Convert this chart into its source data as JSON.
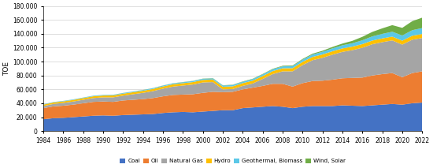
{
  "years": [
    1984,
    1985,
    1986,
    1987,
    1988,
    1989,
    1990,
    1991,
    1992,
    1993,
    1994,
    1995,
    1996,
    1997,
    1998,
    1999,
    2000,
    2001,
    2002,
    2003,
    2004,
    2005,
    2006,
    2007,
    2008,
    2009,
    2010,
    2011,
    2012,
    2013,
    2014,
    2015,
    2016,
    2017,
    2018,
    2019,
    2020,
    2021,
    2022
  ],
  "coal": [
    17000,
    18500,
    19000,
    20000,
    21000,
    22000,
    22500,
    22000,
    23000,
    23500,
    24000,
    24500,
    26000,
    27000,
    27500,
    27000,
    28000,
    29000,
    30000,
    30000,
    33000,
    34000,
    35000,
    36000,
    35000,
    33000,
    35000,
    36000,
    36000,
    36000,
    37000,
    36500,
    36000,
    37000,
    38000,
    39000,
    38000,
    40000,
    41000
  ],
  "oil": [
    16000,
    17000,
    17500,
    18000,
    19000,
    20000,
    20000,
    20000,
    21000,
    21500,
    22000,
    23000,
    24000,
    25000,
    25000,
    26000,
    27000,
    27500,
    26000,
    26500,
    27000,
    28500,
    30000,
    32000,
    33000,
    31000,
    34000,
    36000,
    36500,
    38000,
    39000,
    40000,
    41000,
    43000,
    44000,
    44500,
    39500,
    43500,
    45000
  ],
  "natural_gas": [
    3000,
    3500,
    4000,
    4500,
    5000,
    5500,
    6000,
    6500,
    7000,
    8000,
    9000,
    10000,
    11000,
    12000,
    13000,
    14000,
    15000,
    14000,
    4000,
    4000,
    5000,
    6000,
    10000,
    14000,
    18000,
    22000,
    26000,
    30000,
    33000,
    36000,
    38000,
    40000,
    43000,
    45000,
    46000,
    47000,
    47000,
    48000,
    48000
  ],
  "hydro": [
    2000,
    2100,
    2200,
    2300,
    2400,
    2500,
    2600,
    2700,
    2800,
    2900,
    3000,
    3100,
    3200,
    3300,
    3400,
    3500,
    3600,
    3700,
    3800,
    3900,
    4000,
    4100,
    4200,
    4300,
    4400,
    4500,
    4600,
    4700,
    4800,
    4900,
    5000,
    5100,
    5200,
    5300,
    5400,
    5500,
    5600,
    5700,
    5800
  ],
  "geothermal_biomass": [
    500,
    550,
    600,
    650,
    700,
    750,
    800,
    850,
    900,
    950,
    1000,
    1100,
    1200,
    1300,
    1400,
    1500,
    1600,
    1700,
    1800,
    1900,
    2000,
    2200,
    2400,
    2600,
    2800,
    3000,
    3200,
    3500,
    3800,
    4200,
    4500,
    4800,
    5500,
    6000,
    6500,
    7000,
    7500,
    8000,
    8500
  ],
  "wind_solar": [
    100,
    110,
    120,
    130,
    140,
    150,
    160,
    170,
    180,
    190,
    200,
    210,
    220,
    230,
    250,
    270,
    300,
    320,
    350,
    400,
    450,
    500,
    600,
    700,
    800,
    900,
    1000,
    1200,
    1500,
    2000,
    2500,
    3500,
    5000,
    6500,
    8000,
    9500,
    11000,
    13000,
    15000
  ],
  "colors": {
    "coal": "#4472C4",
    "oil": "#ED7D31",
    "natural_gas": "#A5A5A5",
    "hydro": "#FFC000",
    "geothermal_biomass": "#5BC8E8",
    "wind_solar": "#70AD47"
  },
  "ylabel": "TOE",
  "ylim": [
    0,
    180000
  ],
  "yticks": [
    0,
    20000,
    40000,
    60000,
    80000,
    100000,
    120000,
    140000,
    160000,
    180000
  ],
  "xticks": [
    1984,
    1986,
    1988,
    1990,
    1992,
    1994,
    1996,
    1998,
    2000,
    2002,
    2004,
    2006,
    2008,
    2010,
    2012,
    2014,
    2016,
    2018,
    2020,
    2022
  ],
  "legend_labels": [
    "Coal",
    "Oil",
    "Natural Gas",
    "Hydro",
    "Geothermal, Biomass",
    "Wind, Solar"
  ],
  "background_color": "#FFFFFF",
  "grid_color": "#D0D0D0"
}
